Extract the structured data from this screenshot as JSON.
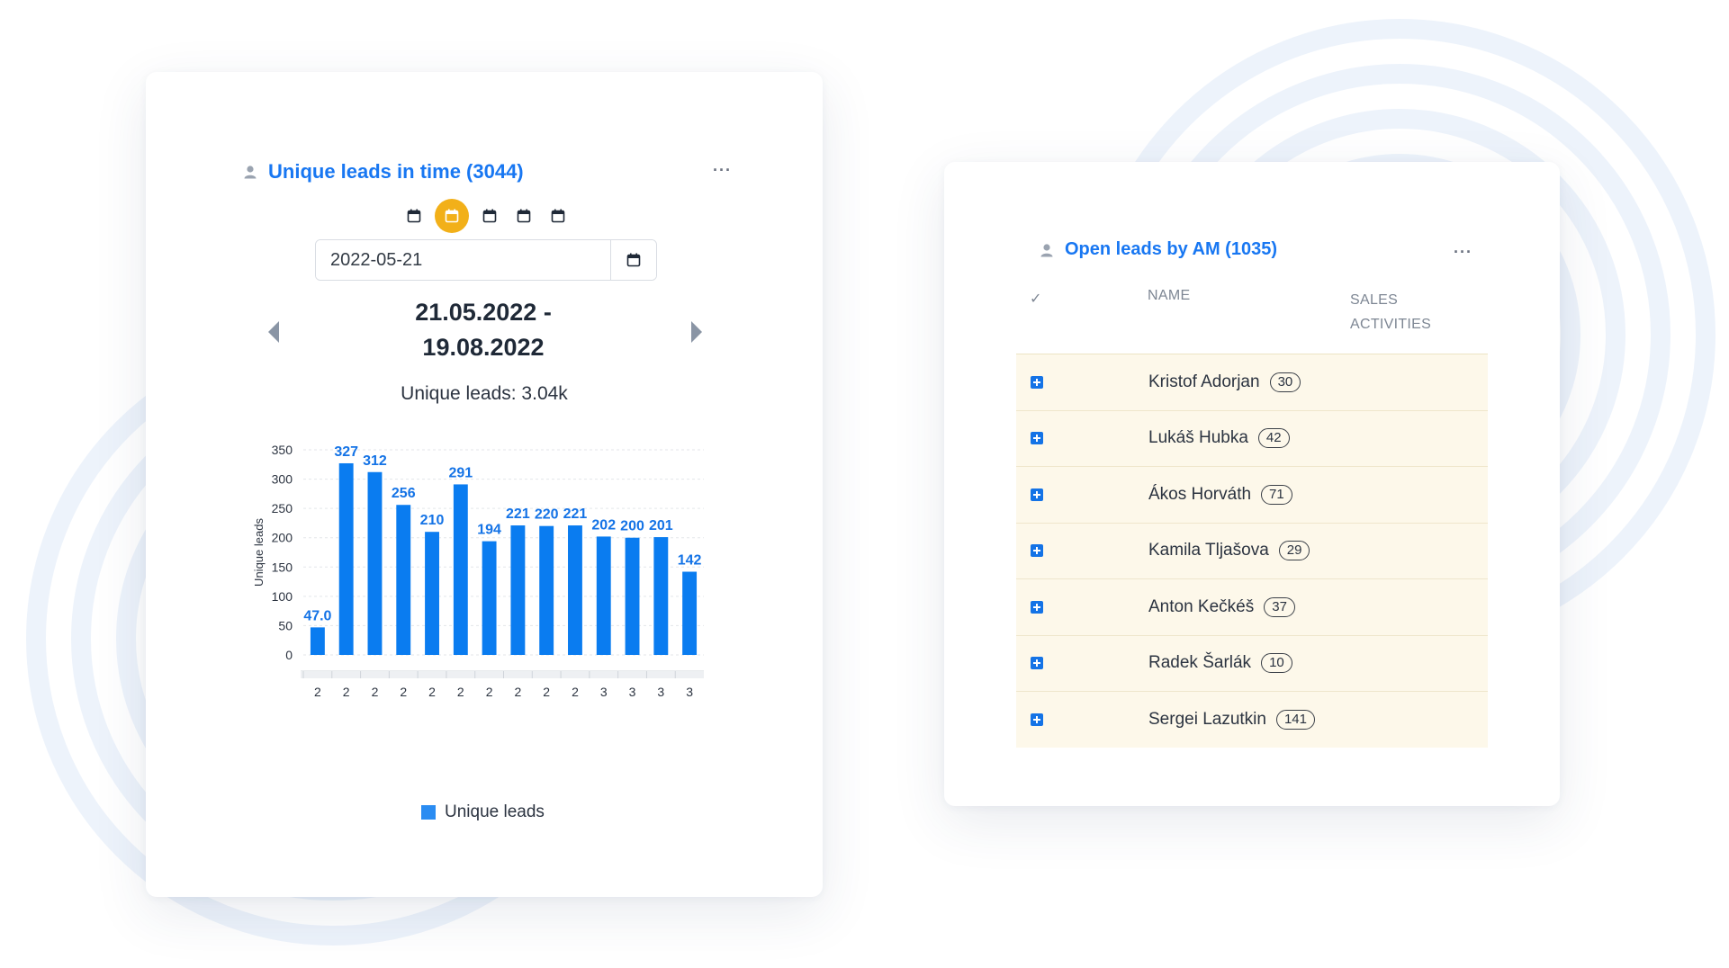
{
  "colors": {
    "accent": "#1877f2",
    "bar": "#0a7cf0",
    "active_period": "#f2b019",
    "row_bg": "#fdf8ea",
    "ring": "#eaf2fb"
  },
  "leads_card": {
    "title": "Unique leads in time (3044)",
    "title_icon": "person-icon",
    "menu_icon": "more-horizontal-icon",
    "period_buttons": [
      {
        "icon": "calendar-icon",
        "active": false
      },
      {
        "icon": "calendar-icon",
        "active": true
      },
      {
        "icon": "calendar-icon",
        "active": false
      },
      {
        "icon": "calendar-icon",
        "active": false
      },
      {
        "icon": "calendar-icon",
        "active": false
      }
    ],
    "date_value": "2022-05-21",
    "date_picker_icon": "calendar-icon",
    "range_start": "21.05.2022 -",
    "range_end": "19.08.2022",
    "prev_icon": "arrow-left-icon",
    "next_icon": "arrow-right-icon",
    "summary": "Unique leads: 3.04k",
    "legend_label": "Unique leads"
  },
  "chart_data": {
    "type": "bar",
    "title": "",
    "ylabel": "Unique leads",
    "xlabel": "",
    "ylim": [
      0,
      350
    ],
    "yticks": [
      0,
      50,
      100,
      150,
      200,
      250,
      300,
      350
    ],
    "grid": true,
    "legend": "bottom",
    "categories": [
      "2",
      "2",
      "2",
      "2",
      "2",
      "2",
      "2",
      "2",
      "2",
      "2",
      "3",
      "3",
      "3",
      "3"
    ],
    "series": [
      {
        "name": "Unique leads",
        "values": [
          47.0,
          327,
          312,
          256,
          210,
          291,
          194,
          221,
          220,
          221,
          202,
          200,
          201,
          142
        ],
        "labels": [
          "47.0",
          "327",
          "312",
          "256",
          "210",
          "291",
          "194",
          "221",
          "220",
          "221",
          "202",
          "200",
          "201",
          "142"
        ]
      }
    ]
  },
  "am_card": {
    "title": "Open leads by AM (1035)",
    "title_icon": "person-icon",
    "menu_icon": "more-horizontal-icon",
    "columns": {
      "check": "✓",
      "name": "NAME",
      "sales_line1": "SALES",
      "sales_line2": "ACTIVITIES"
    },
    "rows": [
      {
        "name": "Kristof Adorjan",
        "count": "30"
      },
      {
        "name": "Lukáš Hubka",
        "count": "42"
      },
      {
        "name": "Ákos Horváth",
        "count": "71"
      },
      {
        "name": "Kamila Tljašova",
        "count": "29"
      },
      {
        "name": "Anton Kečkéš",
        "count": "37"
      },
      {
        "name": "Radek Šarlák",
        "count": "10"
      },
      {
        "name": "Sergei Lazutkin",
        "count": "141"
      }
    ]
  }
}
